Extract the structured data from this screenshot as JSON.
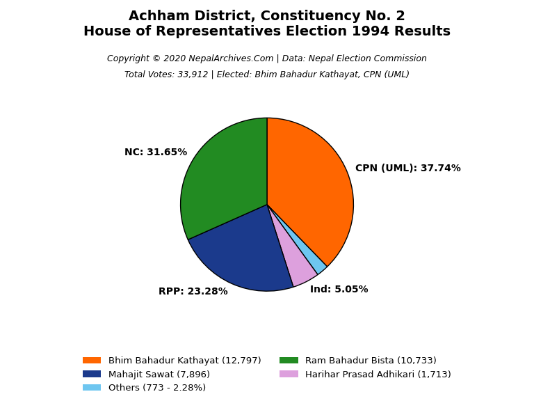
{
  "chart_data": {
    "type": "pie",
    "title": "Achham District, Constituency No. 2\nHouse of Representatives Election 1994 Results",
    "subtitle": [
      "Copyright © 2020 NepalArchives.Com | Data: Nepal Election Commission",
      "Total Votes: 33,912 | Elected: Bhim Bahadur Kathayat, CPN (UML)"
    ],
    "categories": [
      "CPN (UML): 37.74%",
      null,
      "Ind: 5.05%",
      "RPP: 23.28%",
      "NC: 31.65%"
    ],
    "values": [
      37.74,
      2.28,
      5.05,
      23.28,
      31.65
    ],
    "colors": [
      "#FF6600",
      "#6EC6F0",
      "#DDA0DD",
      "#1B3A8C",
      "#228B22"
    ],
    "legend": "lower center",
    "legend_entries": [
      {
        "label": "Bhim Bahadur Kathayat (12,797)",
        "color": "#FF6600"
      },
      {
        "label": "Mahajit Sawat (7,896)",
        "color": "#1B3A8C"
      },
      {
        "label": "Others (773 - 2.28%)",
        "color": "#6EC6F0"
      },
      {
        "label": "Ram Bahadur Bista (10,733)",
        "color": "#228B22"
      },
      {
        "label": "Harihar Prasad Adhikari (1,713)",
        "color": "#DDA0DD"
      }
    ]
  }
}
